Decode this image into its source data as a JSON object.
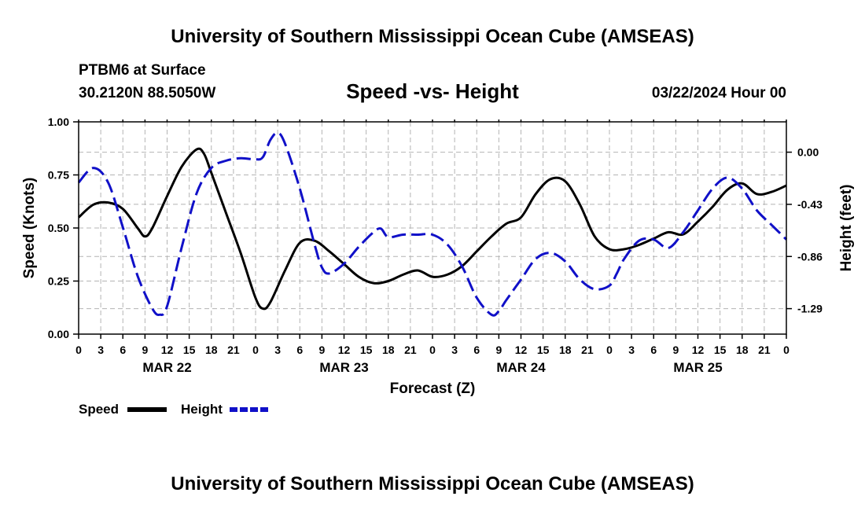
{
  "page": {
    "title_top": "University of Southern Mississippi Ocean Cube (AMSEAS)",
    "title_bottom": "University of Southern Mississippi Ocean Cube (AMSEAS)",
    "station": "PTBM6 at Surface",
    "coords": "30.2120N  88.5050W",
    "chart_title": "Speed -vs- Height",
    "date": "03/22/2024 Hour 00"
  },
  "colors": {
    "speed": "#000000",
    "height": "#1010c8"
  },
  "chart_data": {
    "type": "line",
    "title": "Speed -vs- Height",
    "xlabel": "Forecast (Z)",
    "ylabel": "Speed (Knots)",
    "y2label": "Height (feet)",
    "x_range": [
      0,
      96
    ],
    "ylim": [
      0,
      1.0
    ],
    "y2lim": [
      -1.5,
      0.25
    ],
    "x_ticks": [
      0,
      3,
      6,
      9,
      12,
      15,
      18,
      21,
      24,
      27,
      30,
      33,
      36,
      39,
      42,
      45,
      48,
      51,
      54,
      57,
      60,
      63,
      66,
      69,
      72,
      75,
      78,
      81,
      84,
      87,
      90,
      93,
      96
    ],
    "x_tick_labels": [
      "0",
      "3",
      "6",
      "9",
      "12",
      "15",
      "18",
      "21",
      "0",
      "3",
      "6",
      "9",
      "12",
      "15",
      "18",
      "21",
      "0",
      "3",
      "6",
      "9",
      "12",
      "15",
      "18",
      "21",
      "0",
      "3",
      "6",
      "9",
      "12",
      "15",
      "18",
      "21",
      "0"
    ],
    "day_labels": [
      {
        "x": 12,
        "label": "MAR 22"
      },
      {
        "x": 36,
        "label": "MAR 23"
      },
      {
        "x": 60,
        "label": "MAR 24"
      },
      {
        "x": 84,
        "label": "MAR 25"
      }
    ],
    "y_ticks": [
      0.0,
      0.25,
      0.5,
      0.75,
      1.0
    ],
    "y_tick_labels": [
      "0.00",
      "0.25",
      "0.50",
      "0.75",
      "1.00"
    ],
    "y2_ticks": [
      0.0,
      -0.43,
      -0.86,
      -1.29
    ],
    "y2_tick_labels": [
      "0.00",
      "-0.43",
      "-0.86",
      "-1.29"
    ],
    "grid": true,
    "legend": [
      "Speed",
      "Height"
    ],
    "series": [
      {
        "name": "Speed",
        "axis": "left",
        "x": [
          0,
          2,
          4,
          6,
          8,
          9,
          10,
          12,
          14,
          16,
          17,
          18,
          20,
          22,
          24,
          25,
          26,
          28,
          30,
          32,
          34,
          36,
          38,
          40,
          42,
          44,
          46,
          48,
          50,
          52,
          54,
          56,
          58,
          60,
          62,
          64,
          66,
          68,
          70,
          72,
          74,
          76,
          78,
          80,
          82,
          84,
          86,
          88,
          90,
          92,
          94,
          96
        ],
        "values": [
          0.55,
          0.61,
          0.62,
          0.59,
          0.5,
          0.46,
          0.5,
          0.65,
          0.79,
          0.87,
          0.85,
          0.76,
          0.57,
          0.38,
          0.17,
          0.12,
          0.15,
          0.3,
          0.43,
          0.44,
          0.39,
          0.33,
          0.27,
          0.24,
          0.25,
          0.28,
          0.3,
          0.27,
          0.28,
          0.32,
          0.39,
          0.46,
          0.52,
          0.55,
          0.66,
          0.73,
          0.72,
          0.61,
          0.46,
          0.4,
          0.4,
          0.42,
          0.45,
          0.48,
          0.47,
          0.53,
          0.6,
          0.68,
          0.71,
          0.66,
          0.67,
          0.7
        ]
      },
      {
        "name": "Height",
        "axis": "right",
        "x": [
          0,
          2,
          4,
          6,
          8,
          10,
          11,
          12,
          14,
          16,
          18,
          20,
          22,
          24,
          25,
          26,
          27,
          28,
          30,
          32,
          33,
          34,
          36,
          38,
          40,
          41,
          42,
          44,
          46,
          48,
          50,
          52,
          54,
          56,
          57,
          58,
          60,
          62,
          64,
          66,
          68,
          70,
          72,
          73,
          74,
          76,
          78,
          80,
          82,
          84,
          86,
          88,
          90,
          92,
          94,
          96
        ],
        "values": [
          -0.25,
          -0.13,
          -0.25,
          -0.62,
          -1.02,
          -1.29,
          -1.34,
          -1.27,
          -0.78,
          -0.34,
          -0.13,
          -0.07,
          -0.05,
          -0.06,
          -0.04,
          0.1,
          0.16,
          0.07,
          -0.3,
          -0.76,
          -0.95,
          -1.0,
          -0.92,
          -0.78,
          -0.66,
          -0.63,
          -0.7,
          -0.68,
          -0.68,
          -0.68,
          -0.76,
          -0.94,
          -1.2,
          -1.34,
          -1.31,
          -1.22,
          -1.05,
          -0.88,
          -0.83,
          -0.9,
          -1.05,
          -1.13,
          -1.1,
          -1.0,
          -0.88,
          -0.73,
          -0.72,
          -0.79,
          -0.66,
          -0.48,
          -0.3,
          -0.21,
          -0.3,
          -0.48,
          -0.6,
          -0.72
        ]
      }
    ]
  }
}
